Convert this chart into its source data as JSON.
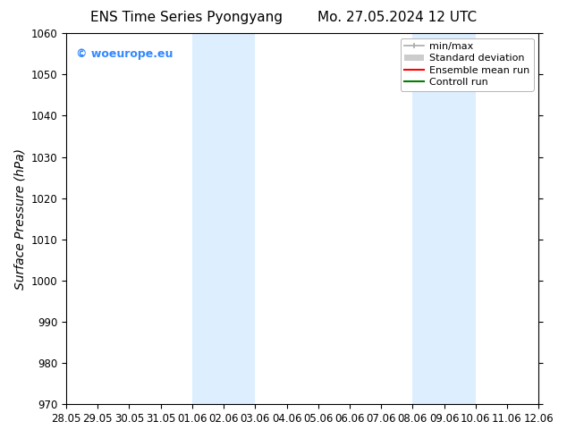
{
  "title_left": "ENS Time Series Pyongyang",
  "title_right": "Mo. 27.05.2024 12 UTC",
  "ylabel": "Surface Pressure (hPa)",
  "ylim": [
    970,
    1060
  ],
  "yticks": [
    970,
    980,
    990,
    1000,
    1010,
    1020,
    1030,
    1040,
    1050,
    1060
  ],
  "xtick_labels": [
    "28.05",
    "29.05",
    "30.05",
    "31.05",
    "01.06",
    "02.06",
    "03.06",
    "04.06",
    "05.06",
    "06.06",
    "07.06",
    "08.06",
    "09.06",
    "10.06",
    "11.06",
    "12.06"
  ],
  "xtick_values": [
    0,
    1,
    2,
    3,
    4,
    5,
    6,
    7,
    8,
    9,
    10,
    11,
    12,
    13,
    14,
    15
  ],
  "xlim": [
    0,
    15
  ],
  "shaded_regions": [
    {
      "xmin": 4,
      "xmax": 6,
      "color": "#ddeeff"
    },
    {
      "xmin": 11,
      "xmax": 13,
      "color": "#ddeeff"
    }
  ],
  "watermark_text": "© woeurope.eu",
  "watermark_color": "#3388ff",
  "legend_labels": [
    "min/max",
    "Standard deviation",
    "Ensemble mean run",
    "Controll run"
  ],
  "legend_colors": [
    "#aaaaaa",
    "#cccccc",
    "#ff0000",
    "#008000"
  ],
  "bg_color": "#ffffff",
  "plot_bg_color": "#ffffff",
  "title_fontsize": 11,
  "tick_fontsize": 8.5,
  "ylabel_fontsize": 10,
  "watermark_fontsize": 9,
  "legend_fontsize": 8
}
